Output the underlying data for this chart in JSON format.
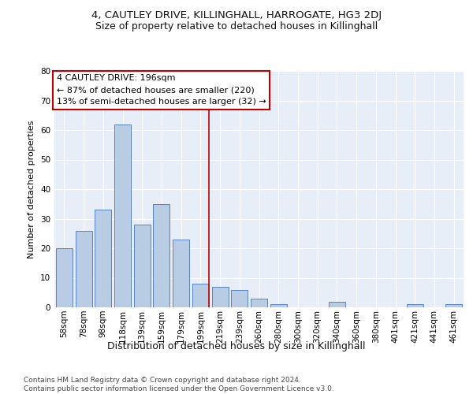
{
  "title1": "4, CAUTLEY DRIVE, KILLINGHALL, HARROGATE, HG3 2DJ",
  "title2": "Size of property relative to detached houses in Killinghall",
  "xlabel": "Distribution of detached houses by size in Killinghall",
  "ylabel": "Number of detached properties",
  "categories": [
    "58sqm",
    "78sqm",
    "98sqm",
    "118sqm",
    "139sqm",
    "159sqm",
    "179sqm",
    "199sqm",
    "219sqm",
    "239sqm",
    "260sqm",
    "280sqm",
    "300sqm",
    "320sqm",
    "340sqm",
    "360sqm",
    "380sqm",
    "401sqm",
    "421sqm",
    "441sqm",
    "461sqm"
  ],
  "values": [
    20,
    26,
    33,
    62,
    28,
    35,
    23,
    8,
    7,
    6,
    3,
    1,
    0,
    0,
    2,
    0,
    0,
    0,
    1,
    0,
    1
  ],
  "bar_color": "#b8cce4",
  "bar_edge_color": "#4472c4",
  "vline_x_index": 7,
  "vline_color": "#c00000",
  "annotation_lines": [
    "4 CAUTLEY DRIVE: 196sqm",
    "← 87% of detached houses are smaller (220)",
    "13% of semi-detached houses are larger (32) →"
  ],
  "annotation_box_color": "#ffffff",
  "annotation_box_edge": "#c00000",
  "ylim": [
    0,
    80
  ],
  "yticks": [
    0,
    10,
    20,
    30,
    40,
    50,
    60,
    70,
    80
  ],
  "plot_bg": "#e8eef8",
  "footer": "Contains HM Land Registry data © Crown copyright and database right 2024.\nContains public sector information licensed under the Open Government Licence v3.0.",
  "title1_fontsize": 9.5,
  "title2_fontsize": 9,
  "xlabel_fontsize": 9,
  "ylabel_fontsize": 8,
  "tick_fontsize": 7.5,
  "annotation_fontsize": 8,
  "footer_fontsize": 6.5
}
